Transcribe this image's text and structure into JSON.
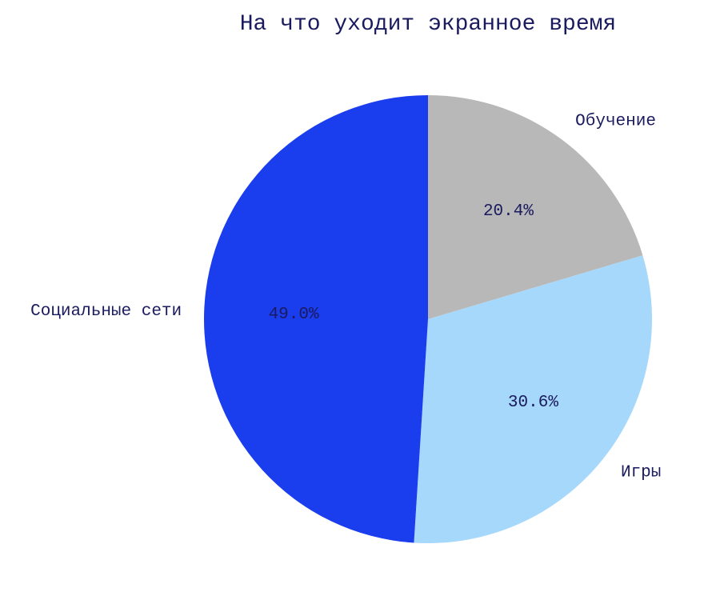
{
  "chart_data": {
    "type": "pie",
    "title": "На что уходит экранное время",
    "start_angle": "top, clockwise",
    "slices": [
      {
        "label": "Обучение",
        "value": 20.4,
        "value_label": "20.4%",
        "color": "#b8b8b8"
      },
      {
        "label": "Игры",
        "value": 30.6,
        "value_label": "30.6%",
        "color": "#a6d8fb"
      },
      {
        "label": "Социальные сети",
        "value": 49.0,
        "value_label": "49.0%",
        "color": "#1a3ded"
      }
    ]
  }
}
